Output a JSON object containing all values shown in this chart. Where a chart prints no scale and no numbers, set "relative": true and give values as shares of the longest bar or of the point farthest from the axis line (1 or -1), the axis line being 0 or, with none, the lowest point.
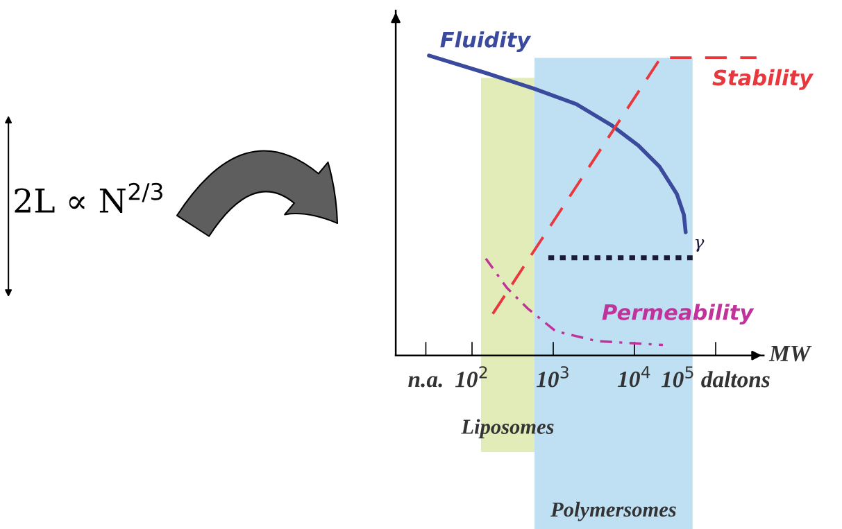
{
  "chart_data": {
    "type": "line",
    "relative": true,
    "log": "x",
    "xlabel": "MW",
    "xlim": [
      11.5,
      390000
    ],
    "xticks": [
      {
        "value": 27,
        "label": "n.a."
      },
      {
        "value": 100,
        "label": "10$^{2}$"
      },
      {
        "value": 1000,
        "label": "10$^{3}$"
      },
      {
        "value": 10000,
        "label": "10$^{4}$"
      },
      {
        "value": 100000,
        "label": "10$^{5}$ daltons"
      }
    ],
    "tick_labels": "x",
    "grid": false,
    "marker": "none",
    "series": [
      {
        "name": "Fluidity",
        "color": "#3a4a9c",
        "line_style": "solid",
        "x": [
          29.5,
          148,
          588,
          1920,
          5130,
          11200,
          20300,
          33300,
          40600,
          42700
        ],
        "values": [
          1.0,
          0.942,
          0.889,
          0.838,
          0.769,
          0.7,
          0.63,
          0.538,
          0.469,
          0.411
        ]
      },
      {
        "name": "Stability",
        "color": "#e8383d",
        "line_style": "dashed",
        "x": [
          180,
          21100,
          318000
        ],
        "values": [
          0.139,
          0.993,
          0.993
        ]
      },
      {
        "name": "γ",
        "color": "#1a1a3a",
        "line_style": "dotted",
        "x": [
          870,
          52000
        ],
        "values": [
          0.326,
          0.326
        ]
      },
      {
        "name": "Permeability",
        "color": "#c0339a",
        "line_style": "dashdot",
        "x": [
          148,
          268,
          483,
          1070,
          3450,
          22400
        ],
        "values": [
          0.323,
          0.226,
          0.157,
          0.081,
          0.048,
          0.035
        ]
      }
    ],
    "bands": [
      {
        "axis": "x",
        "from": 129,
        "to": 588,
        "label": "Liposomes",
        "color": "#e2ecb8"
      },
      {
        "axis": "x",
        "from": 588,
        "to": 52000,
        "label": "Polymersomes",
        "color": "#bfe0f2"
      }
    ],
    "annotations": [
      "2L ∝ N$^{2/3}$"
    ]
  }
}
